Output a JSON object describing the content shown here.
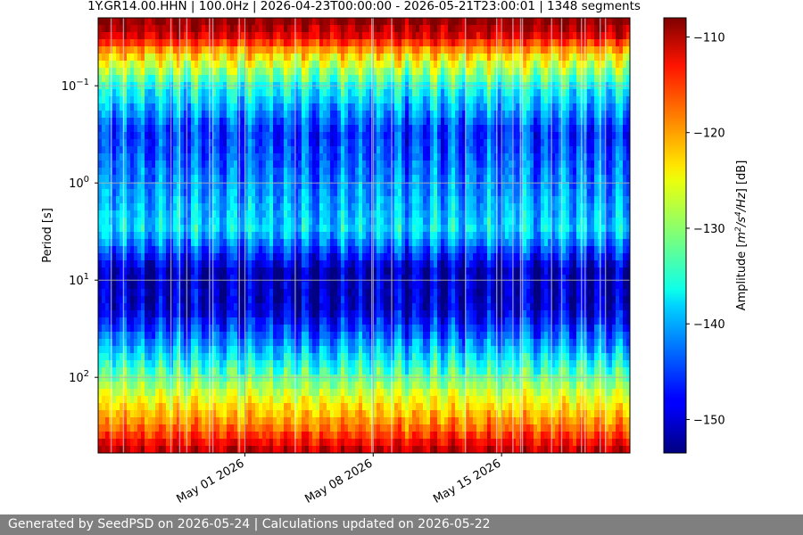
{
  "chart_data": {
    "type": "heatmap",
    "title": "1Y.GR14.00.HHN | 100.0Hz | 2026-04-23T00:00:00 - 2026-05-21T23:00:01 | 1348 segments",
    "ylabel": "Period [s]",
    "yscale": "log",
    "yaxis_inverted": true,
    "y_ticks": [
      {
        "value": 0.1,
        "base": "10",
        "exp": "−1"
      },
      {
        "value": 1,
        "base": "10",
        "exp": "0"
      },
      {
        "value": 10,
        "base": "10",
        "exp": "1"
      },
      {
        "value": 100,
        "base": "10",
        "exp": "2"
      }
    ],
    "ylim": [
      0.02,
      600
    ],
    "x_ticks": [
      "May 01 2026",
      "May 08 2026",
      "May 15 2026"
    ],
    "x_tick_dates": [
      "2026-05-01",
      "2026-05-08",
      "2026-05-15"
    ],
    "xlim": [
      "2026-04-23",
      "2026-05-22"
    ],
    "grid": true,
    "colormap": "jet",
    "colorbar": {
      "label_prefix": "Amplitude [",
      "label_unit_main": "m",
      "label_unit_sup1": "2",
      "label_unit_mid": "/s",
      "label_unit_sup2": "4",
      "label_unit_end": "/Hz",
      "label_suffix": "] [dB]",
      "ticks": [
        "−110",
        "−120",
        "−130",
        "−140",
        "−150"
      ],
      "range": [
        -153.5,
        -108
      ]
    },
    "amplitude_profile_db": [
      {
        "period": 0.02,
        "db": -108
      },
      {
        "period": 0.03,
        "db": -112
      },
      {
        "period": 0.05,
        "db": -124
      },
      {
        "period": 0.1,
        "db": -135
      },
      {
        "period": 0.3,
        "db": -146
      },
      {
        "period": 3,
        "db": -138
      },
      {
        "period": 8,
        "db": -151
      },
      {
        "period": 20,
        "db": -150
      },
      {
        "period": 50,
        "db": -140
      },
      {
        "period": 150,
        "db": -127
      },
      {
        "period": 350,
        "db": -118
      },
      {
        "period": 600,
        "db": -110
      }
    ]
  },
  "footer": "Generated by SeedPSD on 2026-05-24 | Calculations updated on 2026-05-22"
}
